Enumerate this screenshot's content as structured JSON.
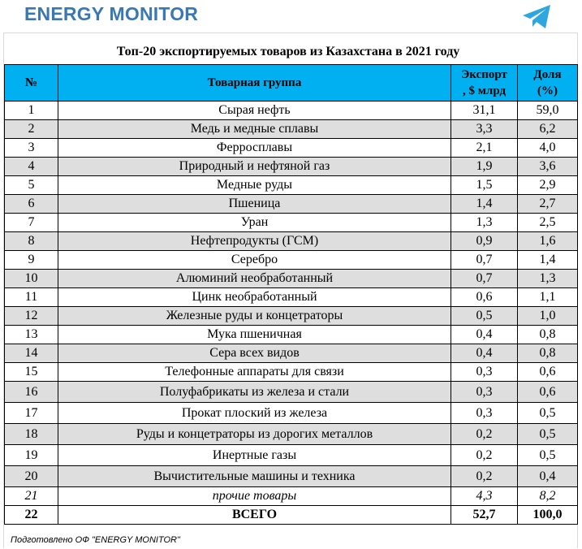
{
  "header": {
    "brand": "ENERGY MONITOR",
    "telegram_icon": "telegram-icon"
  },
  "table": {
    "title": "Топ-20 экспортируемых товаров из Казахстана в 2021 году",
    "columns": {
      "num": "№",
      "group": "Товарная группа",
      "export_line1": "Экспорт",
      "export_line2": ", $ млрд",
      "share_line1": "Доля",
      "share_line2": "(%)"
    },
    "rows": [
      {
        "num": "1",
        "group": "Сырая нефть",
        "export": "31,1",
        "share": "59,0"
      },
      {
        "num": "2",
        "group": "Медь и медные сплавы",
        "export": "3,3",
        "share": "6,2"
      },
      {
        "num": "3",
        "group": "Ферросплавы",
        "export": "2,1",
        "share": "4,0"
      },
      {
        "num": "4",
        "group": "Природный и нефтяной газ",
        "export": "1,9",
        "share": "3,6"
      },
      {
        "num": "5",
        "group": "Медные руды",
        "export": "1,5",
        "share": "2,9"
      },
      {
        "num": "6",
        "group": "Пшеница",
        "export": "1,4",
        "share": "2,7"
      },
      {
        "num": "7",
        "group": "Уран",
        "export": "1,3",
        "share": "2,5"
      },
      {
        "num": "8",
        "group": "Нефтепродукты (ГСМ)",
        "export": "0,9",
        "share": "1,6"
      },
      {
        "num": "9",
        "group": "Серебро",
        "export": "0,7",
        "share": "1,4"
      },
      {
        "num": "10",
        "group": "Алюминий необработанный",
        "export": "0,7",
        "share": "1,3"
      },
      {
        "num": "11",
        "group": "Цинк необработанный",
        "export": "0,6",
        "share": "1,1"
      },
      {
        "num": "12",
        "group": "Железные руды и концетраторы",
        "export": "0,5",
        "share": "1,0"
      },
      {
        "num": "13",
        "group": "Мука пшеничная",
        "export": "0,4",
        "share": "0,8"
      },
      {
        "num": "14",
        "group": "Сера всех видов",
        "export": "0,4",
        "share": "0,8"
      },
      {
        "num": "15",
        "group": "Телефонные аппараты для связи",
        "export": "0,3",
        "share": "0,6"
      },
      {
        "num": "16",
        "group": "Полуфабрикаты из железа и стали",
        "export": "0,3",
        "share": "0,6"
      },
      {
        "num": "17",
        "group": "Прокат плоский из железа",
        "export": "0,3",
        "share": "0,5"
      },
      {
        "num": "18",
        "group": "Руды и концетраторы из дорогих металлов",
        "export": "0,2",
        "share": "0,5"
      },
      {
        "num": "19",
        "group": "Инертные газы",
        "export": "0,2",
        "share": "0,5"
      },
      {
        "num": "20",
        "group": "Вычистительные машины и техника",
        "export": "0,2",
        "share": "0,4"
      },
      {
        "num": "21",
        "group": "прочие товары",
        "export": "4,3",
        "share": "8,2"
      },
      {
        "num": "22",
        "group": "ВСЕГО",
        "export": "52,7",
        "share": "100,0"
      }
    ],
    "footer": "Подготовлено ОФ \"ENERGY MONITOR\""
  },
  "colors": {
    "brand": "#3a78b5",
    "header_fill": "#00b0f0",
    "row_stripe": "#dedede",
    "telegram": "#2ea6e0"
  }
}
